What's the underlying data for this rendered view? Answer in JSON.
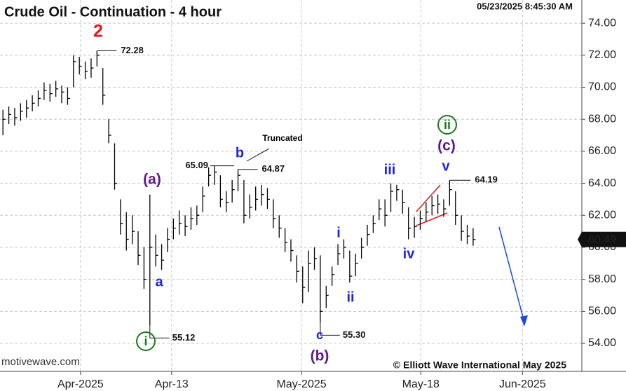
{
  "chart_data": {
    "type": "ohlc",
    "title": "Crude Oil - Continuation - 4 hour",
    "timestamp": "05/23/2025 8:45:30 AM",
    "watermark": "motivewave.com",
    "copyright": "© Elliott Wave International May 2025",
    "categories": [
      null,
      null,
      null,
      null,
      null,
      null,
      null,
      null,
      null,
      null,
      null,
      null,
      null,
      null,
      null,
      null,
      null,
      null,
      null,
      null,
      null,
      null,
      null,
      null,
      null,
      null,
      null,
      null,
      null,
      null,
      null,
      null,
      null,
      null,
      null,
      null,
      null,
      null,
      null,
      null,
      null,
      null,
      null,
      null,
      null,
      null,
      null,
      null,
      null,
      null,
      null,
      null,
      null,
      null,
      null,
      null,
      null,
      null,
      null,
      null,
      null,
      null,
      null,
      null,
      null,
      null,
      null,
      null,
      null,
      null,
      null,
      null,
      null,
      null,
      null,
      null,
      null,
      null,
      null,
      null,
      null
    ],
    "high": [
      68.6,
      68.8,
      68.7,
      69.0,
      69.2,
      69.5,
      69.8,
      70.3,
      70.2,
      70.4,
      70.1,
      70.0,
      72.0,
      71.9,
      71.6,
      71.8,
      72.28,
      71.2,
      68.0,
      66.5,
      63.0,
      62.2,
      62.0,
      61.0,
      60.0,
      63.3,
      60.8,
      60.2,
      61.2,
      61.8,
      62.3,
      62.0,
      62.5,
      62.6,
      63.8,
      65.0,
      65.09,
      64.5,
      63.5,
      64.2,
      64.87,
      64.2,
      63.3,
      63.8,
      63.9,
      63.7,
      63.0,
      62.0,
      61.2,
      60.5,
      59.5,
      58.8,
      59.8,
      60.0,
      59.5,
      57.6,
      58.8,
      60.2,
      60.5,
      59.8,
      59.6,
      60.6,
      61.4,
      62.0,
      63.0,
      63.0,
      64.0,
      63.9,
      63.6,
      62.5,
      61.9,
      62.3,
      62.8,
      63.2,
      63.3,
      63.0,
      64.19,
      63.5,
      62.0,
      61.4,
      61.2
    ],
    "low": [
      67.0,
      67.7,
      67.6,
      67.9,
      68.1,
      68.5,
      68.8,
      69.2,
      69.1,
      69.4,
      69.0,
      68.9,
      70.0,
      70.8,
      70.5,
      70.6,
      71.3,
      68.9,
      66.5,
      63.6,
      60.8,
      59.8,
      60.2,
      58.9,
      57.4,
      55.12,
      58.8,
      58.6,
      59.7,
      60.5,
      60.8,
      60.7,
      61.1,
      61.4,
      62.2,
      63.8,
      63.9,
      62.5,
      62.2,
      62.8,
      63.5,
      61.5,
      61.8,
      62.3,
      62.6,
      62.4,
      61.2,
      60.6,
      59.7,
      59.1,
      57.8,
      56.5,
      57.2,
      58.6,
      55.3,
      56.2,
      57.6,
      58.9,
      59.3,
      57.8,
      58.2,
      59.3,
      60.1,
      60.9,
      61.7,
      61.3,
      62.2,
      62.9,
      62.1,
      60.5,
      60.6,
      61.1,
      61.6,
      62.0,
      62.1,
      61.9,
      62.6,
      61.4,
      60.4,
      60.2,
      60.1
    ],
    "close": [
      68.0,
      68.3,
      68.1,
      68.5,
      68.7,
      69.0,
      69.3,
      69.8,
      69.6,
      69.9,
      69.7,
      69.3,
      71.6,
      71.3,
      71.0,
      71.2,
      72.0,
      69.5,
      67.0,
      64.0,
      61.5,
      60.5,
      61.0,
      59.5,
      58.0,
      60.0,
      59.5,
      59.2,
      60.5,
      61.2,
      61.5,
      61.3,
      61.8,
      62.0,
      63.2,
      64.5,
      64.7,
      63.0,
      62.8,
      63.6,
      64.5,
      62.0,
      62.5,
      63.0,
      63.3,
      63.0,
      61.8,
      61.2,
      60.3,
      59.8,
      58.5,
      57.5,
      59.0,
      59.3,
      56.0,
      57.0,
      58.3,
      59.6,
      60.0,
      58.2,
      59.0,
      60.0,
      60.8,
      61.5,
      62.4,
      62.0,
      63.5,
      63.6,
      62.8,
      61.2,
      61.3,
      61.8,
      62.2,
      62.6,
      62.7,
      62.4,
      63.6,
      62.0,
      61.0,
      60.7,
      60.49
    ],
    "color": "#000000",
    "xlim": [
      -0.5,
      98.5
    ],
    "xticks": [
      {
        "value": 13.2,
        "label": "Apr-2025"
      },
      {
        "value": 28.7,
        "label": "Apr-13"
      },
      {
        "value": 50.8,
        "label": "May-2025"
      },
      {
        "value": 71.1,
        "label": "May-18"
      },
      {
        "value": 88.4,
        "label": "Jun-2025"
      }
    ],
    "ylim": [
      52.25,
      75.45
    ],
    "yticks": [
      {
        "value": 54,
        "label": "54.00"
      },
      {
        "value": 56,
        "label": "56.00"
      },
      {
        "value": 58,
        "label": "58.00"
      },
      {
        "value": 60,
        "label": "60.00"
      },
      {
        "value": 62,
        "label": "62.00"
      },
      {
        "value": 64,
        "label": "64.00"
      },
      {
        "value": 66,
        "label": "66.00"
      },
      {
        "value": 68,
        "label": "68.00"
      },
      {
        "value": 70,
        "label": "70.00"
      },
      {
        "value": 72,
        "label": "72.00"
      },
      {
        "value": 74,
        "label": "74.00"
      }
    ],
    "grid": true,
    "last_price": 60.49,
    "price_labels": [
      {
        "value": 72.28,
        "label": "72.28"
      },
      {
        "value": 65.09,
        "label": "65.09"
      },
      {
        "value": 64.87,
        "label": "64.87"
      },
      {
        "value": 64.19,
        "label": "64.19"
      },
      {
        "value": 55.12,
        "label": "55.12"
      },
      {
        "value": 55.3,
        "label": "55.30"
      }
    ],
    "wave_labels": [
      {
        "text": "2",
        "color": "#e8141b"
      },
      {
        "text": "(a)",
        "color": "#5b1a8c"
      },
      {
        "text": "a",
        "color": "#1a24e0"
      },
      {
        "text": "i",
        "color": "#1a7a1a",
        "circled": true
      },
      {
        "text": "b",
        "color": "#1a24e0"
      },
      {
        "text": "Truncated",
        "color": "#000000"
      },
      {
        "text": "(b)",
        "color": "#5b1a8c"
      },
      {
        "text": "c",
        "color": "#1a24e0"
      },
      {
        "text": "i",
        "color": "#1a24e0"
      },
      {
        "text": "ii",
        "color": "#1a24e0"
      },
      {
        "text": "iii",
        "color": "#1a24e0"
      },
      {
        "text": "iv",
        "color": "#1a24e0"
      },
      {
        "text": "v",
        "color": "#1a24e0"
      },
      {
        "text": "(c)",
        "color": "#5b1a8c"
      },
      {
        "text": "ii",
        "color": "#1a7a1a",
        "circled": true
      }
    ]
  }
}
